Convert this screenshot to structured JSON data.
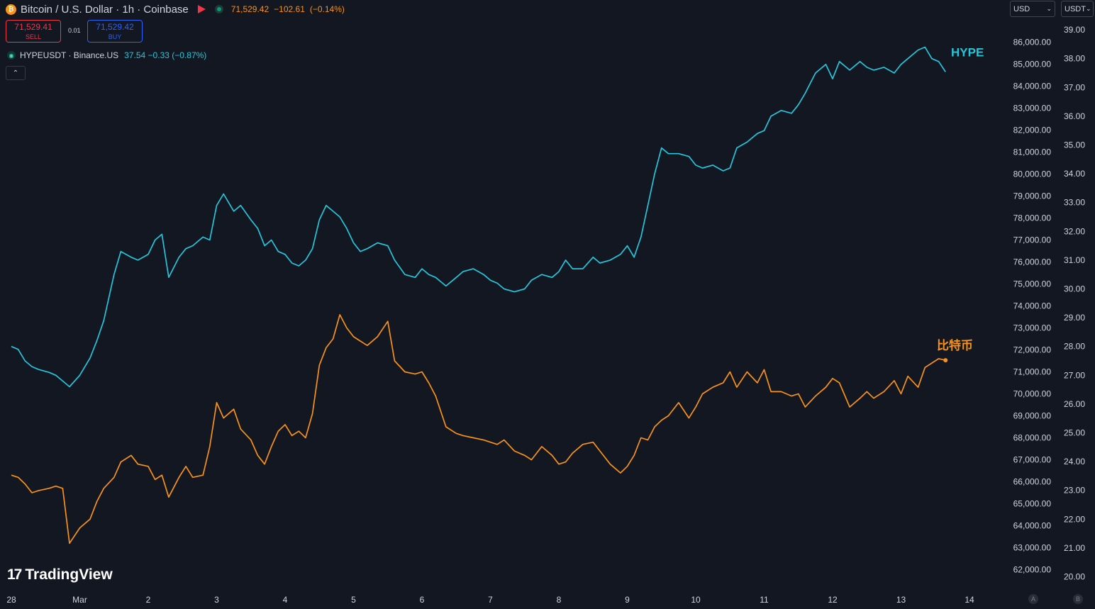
{
  "header": {
    "symbol_title": "Bitcoin / U.S. Dollar · 1h · Coinbase",
    "btc_icon": "bitcoin-icon",
    "last_price": "71,529.42",
    "change": "−102.61",
    "change_pct": "(−0.14%)",
    "sell_price": "71,529.41",
    "sell_label": "SELL",
    "buy_price": "71,529.42",
    "buy_label": "BUY",
    "spread": "0.01"
  },
  "compare": {
    "symbol": "HYPEUSDT · Binance.US",
    "last": "37.54",
    "change": "−0.33",
    "change_pct": "(−0.87%)"
  },
  "currency": {
    "left": "USD",
    "right": "USDT"
  },
  "branding": {
    "name": "TradingView"
  },
  "scale_buttons": {
    "a": "A",
    "b": "B"
  },
  "colors": {
    "background": "#131722",
    "btc_line": "#f7931a",
    "hype_line": "#26c6da",
    "text": "#d1d4dc"
  },
  "chart_data": {
    "type": "line",
    "x_ticks": [
      "28",
      "Mar",
      "2",
      "3",
      "4",
      "5",
      "6",
      "7",
      "8",
      "9",
      "10",
      "11",
      "12",
      "13",
      "14"
    ],
    "btc_axis_ticks": [
      62000,
      63000,
      64000,
      65000,
      66000,
      67000,
      68000,
      69000,
      70000,
      71000,
      72000,
      73000,
      74000,
      75000,
      76000,
      77000,
      78000,
      79000,
      80000,
      81000,
      82000,
      83000,
      84000,
      85000,
      86000
    ],
    "btc_axis_labels": [
      "62,000.00",
      "63,000.00",
      "64,000.00",
      "65,000.00",
      "66,000.00",
      "67,000.00",
      "68,000.00",
      "69,000.00",
      "70,000.00",
      "71,000.00",
      "72,000.00",
      "73,000.00",
      "74,000.00",
      "75,000.00",
      "76,000.00",
      "77,000.00",
      "78,000.00",
      "79,000.00",
      "80,000.00",
      "81,000.00",
      "82,000.00",
      "83,000.00",
      "84,000.00",
      "85,000.00",
      "86,000.00"
    ],
    "hype_axis_ticks": [
      20,
      21,
      22,
      23,
      24,
      25,
      26,
      27,
      28,
      29,
      30,
      31,
      32,
      33,
      34,
      35,
      36,
      37,
      38,
      39
    ],
    "hype_axis_labels": [
      "20.00",
      "21.00",
      "22.00",
      "23.00",
      "24.00",
      "25.00",
      "26.00",
      "27.00",
      "28.00",
      "29.00",
      "30.00",
      "31.00",
      "32.00",
      "33.00",
      "34.00",
      "35.00",
      "36.00",
      "37.00",
      "38.00",
      "39.00"
    ],
    "series": [
      {
        "name": "比特币",
        "axis": "left",
        "x": [
          0,
          0.1,
          0.2,
          0.3,
          0.4,
          0.55,
          0.65,
          0.75,
          0.85,
          1.0,
          1.15,
          1.25,
          1.35,
          1.5,
          1.6,
          1.75,
          1.85,
          2.0,
          2.1,
          2.2,
          2.3,
          2.45,
          2.55,
          2.65,
          2.8,
          2.9,
          3.0,
          3.1,
          3.25,
          3.35,
          3.5,
          3.6,
          3.7,
          3.8,
          3.9,
          4.0,
          4.1,
          4.2,
          4.3,
          4.4,
          4.5,
          4.6,
          4.7,
          4.8,
          4.9,
          5.0,
          5.1,
          5.2,
          5.35,
          5.5,
          5.6,
          5.75,
          5.9,
          6.0,
          6.1,
          6.2,
          6.35,
          6.5,
          6.6,
          6.75,
          6.9,
          7.0,
          7.1,
          7.2,
          7.35,
          7.5,
          7.6,
          7.75,
          7.9,
          8.0,
          8.1,
          8.2,
          8.35,
          8.5,
          8.6,
          8.75,
          8.9,
          9.0,
          9.1,
          9.2,
          9.3,
          9.4,
          9.5,
          9.6,
          9.75,
          9.9,
          10.0,
          10.1,
          10.25,
          10.4,
          10.5,
          10.6,
          10.75,
          10.9,
          11.0,
          11.1,
          11.25,
          11.4,
          11.5,
          11.6,
          11.75,
          11.9,
          12.0,
          12.1,
          12.25,
          12.4,
          12.5,
          12.6,
          12.75,
          12.9,
          13.0,
          13.1,
          13.25,
          13.35,
          13.45,
          13.55,
          13.65
        ],
        "values": [
          66300,
          66200,
          65900,
          65500,
          65600,
          65700,
          65800,
          65700,
          63200,
          63900,
          64300,
          65100,
          65700,
          66200,
          66900,
          67200,
          66800,
          66700,
          66100,
          66300,
          65300,
          66200,
          66700,
          66200,
          66300,
          67600,
          69600,
          68900,
          69300,
          68400,
          67900,
          67200,
          66800,
          67600,
          68300,
          68600,
          68100,
          68300,
          68000,
          69100,
          71300,
          72100,
          72500,
          73600,
          73000,
          72600,
          72400,
          72200,
          72600,
          73300,
          71500,
          71000,
          70900,
          71000,
          70500,
          69900,
          68500,
          68200,
          68100,
          68000,
          67900,
          67800,
          67700,
          67900,
          67400,
          67200,
          67000,
          67600,
          67200,
          66800,
          66900,
          67300,
          67700,
          67800,
          67400,
          66800,
          66400,
          66700,
          67200,
          68000,
          67900,
          68500,
          68800,
          69000,
          69600,
          68900,
          69400,
          70000,
          70300,
          70500,
          71000,
          70300,
          71000,
          70500,
          71100,
          70100,
          70100,
          69900,
          70000,
          69400,
          69900,
          70300,
          70700,
          70500,
          69400,
          69800,
          70100,
          69800,
          70100,
          70600,
          70000,
          70800,
          70300,
          71200,
          71400,
          71600,
          71529.42
        ]
      },
      {
        "name": "HYPE",
        "axis": "right",
        "x": [
          0,
          0.1,
          0.2,
          0.3,
          0.4,
          0.55,
          0.65,
          0.75,
          0.85,
          1.0,
          1.15,
          1.25,
          1.35,
          1.5,
          1.6,
          1.75,
          1.85,
          2.0,
          2.1,
          2.2,
          2.3,
          2.45,
          2.55,
          2.65,
          2.8,
          2.9,
          3.0,
          3.1,
          3.25,
          3.35,
          3.5,
          3.6,
          3.7,
          3.8,
          3.9,
          4.0,
          4.1,
          4.2,
          4.3,
          4.4,
          4.5,
          4.6,
          4.7,
          4.8,
          4.9,
          5.0,
          5.1,
          5.2,
          5.35,
          5.5,
          5.6,
          5.75,
          5.9,
          6.0,
          6.1,
          6.2,
          6.35,
          6.5,
          6.6,
          6.75,
          6.9,
          7.0,
          7.1,
          7.2,
          7.35,
          7.5,
          7.6,
          7.75,
          7.9,
          8.0,
          8.1,
          8.2,
          8.35,
          8.5,
          8.6,
          8.75,
          8.9,
          9.0,
          9.1,
          9.2,
          9.3,
          9.4,
          9.5,
          9.6,
          9.75,
          9.9,
          10.0,
          10.1,
          10.25,
          10.4,
          10.5,
          10.6,
          10.75,
          10.9,
          11.0,
          11.1,
          11.25,
          11.4,
          11.5,
          11.6,
          11.75,
          11.9,
          12.0,
          12.1,
          12.25,
          12.4,
          12.5,
          12.6,
          12.75,
          12.9,
          13.0,
          13.1,
          13.25,
          13.35,
          13.45,
          13.55,
          13.65
        ],
        "values": [
          28,
          27.9,
          27.5,
          27.3,
          27.2,
          27.1,
          27.0,
          26.8,
          26.6,
          27.0,
          27.6,
          28.2,
          28.9,
          30.5,
          31.3,
          31.1,
          31.0,
          31.2,
          31.7,
          31.9,
          30.4,
          31.1,
          31.4,
          31.5,
          31.8,
          31.7,
          32.9,
          33.3,
          32.7,
          32.9,
          32.4,
          32.1,
          31.5,
          31.7,
          31.3,
          31.2,
          30.9,
          30.8,
          31.0,
          31.4,
          32.4,
          32.9,
          32.7,
          32.5,
          32.1,
          31.6,
          31.3,
          31.4,
          31.6,
          31.5,
          31.0,
          30.5,
          30.4,
          30.7,
          30.5,
          30.4,
          30.1,
          30.4,
          30.6,
          30.7,
          30.5,
          30.3,
          30.2,
          30.0,
          29.9,
          30.0,
          30.3,
          30.5,
          30.4,
          30.6,
          31.0,
          30.7,
          30.7,
          31.1,
          30.9,
          31.0,
          31.2,
          31.5,
          31.1,
          31.8,
          32.9,
          34.0,
          34.9,
          34.7,
          34.7,
          34.6,
          34.3,
          34.2,
          34.3,
          34.1,
          34.2,
          34.9,
          35.1,
          35.4,
          35.5,
          36.0,
          36.2,
          36.1,
          36.4,
          36.8,
          37.5,
          37.8,
          37.3,
          37.9,
          37.6,
          37.9,
          37.7,
          37.6,
          37.7,
          37.5,
          37.8,
          38.0,
          38.3,
          38.4,
          38.0,
          37.9,
          37.54
        ]
      }
    ],
    "series_labels": {
      "btc": "比特币",
      "hype": "HYPE"
    }
  }
}
